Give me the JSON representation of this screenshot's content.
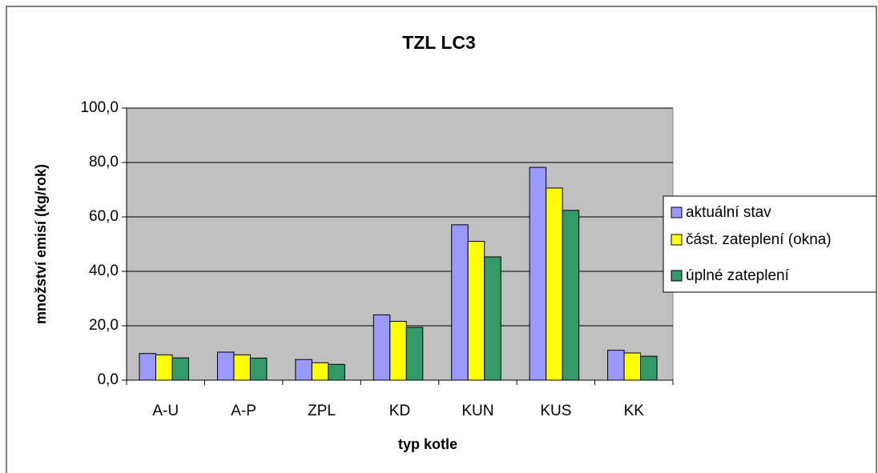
{
  "chart_data": {
    "type": "bar",
    "title": "TZL LC3",
    "x_label": "typ kotle",
    "y_label": "množství emisí (kg/rok)",
    "categories": [
      "A-U",
      "A-P",
      "ZPL",
      "KD",
      "KUN",
      "KUS",
      "KK"
    ],
    "series": [
      {
        "name": "aktuální stav",
        "color": "#9999ff",
        "values": [
          9.8,
          10.3,
          7.6,
          24.0,
          57.1,
          78.2,
          11.0
        ]
      },
      {
        "name": "část. zateplení (okna)",
        "color": "#ffff00",
        "values": [
          9.3,
          9.3,
          6.4,
          21.6,
          51.0,
          70.6,
          10.0
        ]
      },
      {
        "name": "úplné zateplení",
        "color": "#339966",
        "values": [
          8.2,
          8.1,
          5.8,
          19.4,
          45.3,
          62.4,
          8.8
        ]
      }
    ],
    "ylim": [
      0,
      100
    ],
    "yticks": [
      {
        "value": 0,
        "label": "0,0"
      },
      {
        "value": 20,
        "label": "20,0"
      },
      {
        "value": 40,
        "label": "40,0"
      },
      {
        "value": 60,
        "label": "60,0"
      },
      {
        "value": 80,
        "label": "80,0"
      },
      {
        "value": 100,
        "label": "100,0"
      }
    ],
    "grid": true,
    "legend": "right"
  }
}
